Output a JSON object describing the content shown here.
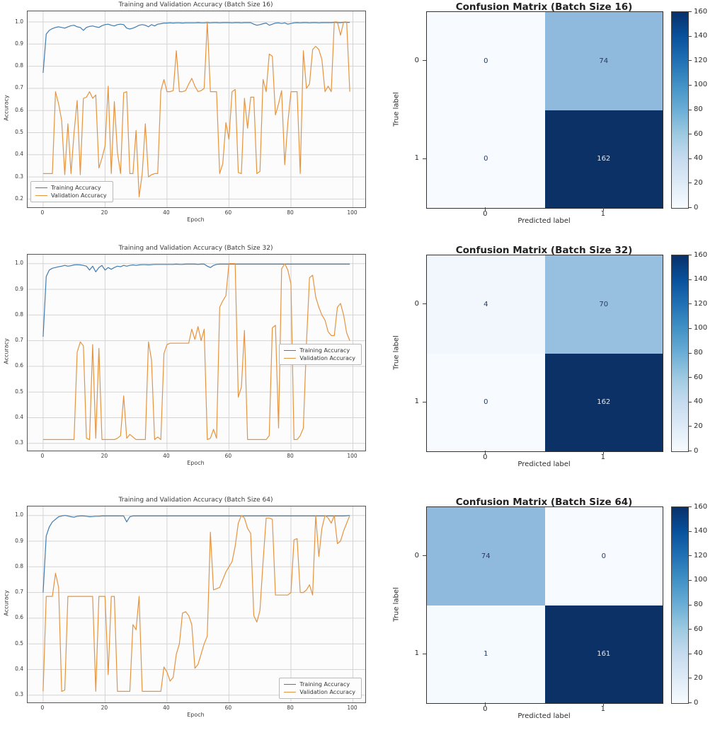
{
  "colors": {
    "training_line": "#417cb0",
    "validation_line": "#e59440",
    "grid_line": "#d4d4d4",
    "cm_dark_cell_text": "#dfe8f4",
    "cm_light_cell_text": "#263a5e"
  },
  "chart_data": [
    {
      "type": "line",
      "title": "Training and Validation Accuracy (Batch Size 16)",
      "xlabel": "Epoch",
      "ylabel": "Accuracy",
      "xticks": [
        0,
        20,
        40,
        60,
        80,
        100
      ],
      "yticks": [
        0.2,
        0.3,
        0.4,
        0.5,
        0.6,
        0.7,
        0.8,
        0.9,
        1.0
      ],
      "xlim": [
        -5,
        104
      ],
      "ylim": [
        0.163,
        1.048
      ],
      "grid": true,
      "legend_pos": "bottom-left",
      "series": [
        {
          "id": "training-accuracy-line",
          "name": "Training Accuracy",
          "color": "#417cb0",
          "values": [
            0.77,
            0.945,
            0.962,
            0.97,
            0.975,
            0.978,
            0.975,
            0.972,
            0.978,
            0.983,
            0.985,
            0.978,
            0.975,
            0.962,
            0.975,
            0.98,
            0.982,
            0.978,
            0.975,
            0.983,
            0.988,
            0.99,
            0.985,
            0.982,
            0.988,
            0.99,
            0.988,
            0.972,
            0.968,
            0.972,
            0.978,
            0.985,
            0.988,
            0.985,
            0.978,
            0.988,
            0.982,
            0.99,
            0.992,
            0.995,
            0.995,
            0.996,
            0.995,
            0.996,
            0.996,
            0.995,
            0.996,
            0.996,
            0.996,
            0.996,
            0.997,
            0.996,
            0.996,
            0.997,
            0.996,
            0.997,
            0.997,
            0.996,
            0.997,
            0.997,
            0.997,
            0.996,
            0.997,
            0.997,
            0.996,
            0.997,
            0.997,
            0.997,
            0.99,
            0.985,
            0.988,
            0.992,
            0.995,
            0.985,
            0.99,
            0.995,
            0.996,
            0.993,
            0.996,
            0.99,
            0.993,
            0.996,
            0.997,
            0.996,
            0.997,
            0.997,
            0.996,
            0.997,
            0.997,
            0.996,
            0.997,
            0.997,
            0.997,
            0.997,
            0.998,
            0.997,
            0.997,
            0.998,
            0.998,
            0.998
          ]
        },
        {
          "id": "validation-accuracy-line",
          "name": "Validation Accuracy",
          "color": "#e59440",
          "values": [
            0.315,
            0.315,
            0.315,
            0.315,
            0.685,
            0.63,
            0.555,
            0.31,
            0.54,
            0.315,
            0.5,
            0.645,
            0.31,
            0.655,
            0.66,
            0.685,
            0.655,
            0.67,
            0.34,
            0.385,
            0.44,
            0.71,
            0.315,
            0.64,
            0.41,
            0.315,
            0.68,
            0.685,
            0.315,
            0.315,
            0.51,
            0.21,
            0.315,
            0.54,
            0.3,
            0.31,
            0.315,
            0.315,
            0.69,
            0.74,
            0.685,
            0.685,
            0.69,
            0.87,
            0.685,
            0.685,
            0.69,
            0.72,
            0.745,
            0.71,
            0.685,
            0.69,
            0.7,
            1.0,
            0.685,
            0.685,
            0.685,
            0.315,
            0.36,
            0.545,
            0.47,
            0.685,
            0.695,
            0.32,
            0.315,
            0.655,
            0.52,
            0.66,
            0.66,
            0.315,
            0.325,
            0.74,
            0.685,
            0.855,
            0.845,
            0.58,
            0.63,
            0.69,
            0.355,
            0.545,
            0.685,
            0.685,
            0.685,
            0.315,
            0.87,
            0.7,
            0.72,
            0.875,
            0.89,
            0.875,
            0.83,
            0.685,
            0.71,
            0.685,
            1.0,
            1.0,
            0.94,
            1.0,
            1.0,
            0.685
          ]
        }
      ]
    },
    {
      "type": "heatmap",
      "title": "Confusion Matrix (Batch Size 16)",
      "xlabel": "Predicted label",
      "ylabel": "True label",
      "row_labels": [
        "0",
        "1"
      ],
      "col_labels": [
        "0",
        "1"
      ],
      "values": [
        [
          0,
          74
        ],
        [
          0,
          162
        ]
      ],
      "cell_colors": [
        [
          "#f7fbff",
          "#90badd"
        ],
        [
          "#f7fbff",
          "#0b3166"
        ]
      ],
      "colorbar": {
        "min": 0,
        "max": 160,
        "ticks": [
          0,
          20,
          40,
          60,
          80,
          100,
          120,
          140,
          160
        ],
        "gradient": [
          "#f7fbff",
          "#deebf7",
          "#c6dbef",
          "#9ecae1",
          "#6baed6",
          "#4292c6",
          "#2171b5",
          "#08519c",
          "#08306b"
        ]
      }
    },
    {
      "type": "line",
      "title": "Training and Validation Accuracy (Batch Size 32)",
      "xlabel": "Epoch",
      "ylabel": "Accuracy",
      "xticks": [
        0,
        20,
        40,
        60,
        80,
        100
      ],
      "yticks": [
        0.3,
        0.4,
        0.5,
        0.6,
        0.7,
        0.8,
        0.9,
        1.0
      ],
      "xlim": [
        -5,
        104
      ],
      "ylim": [
        0.272,
        1.035
      ],
      "grid": true,
      "legend_pos": "right-center",
      "series": [
        {
          "id": "training-accuracy-line",
          "name": "Training Accuracy",
          "color": "#417cb0",
          "values": [
            0.715,
            0.95,
            0.975,
            0.982,
            0.985,
            0.988,
            0.99,
            0.993,
            0.99,
            0.992,
            0.995,
            0.996,
            0.995,
            0.993,
            0.99,
            0.975,
            0.99,
            0.968,
            0.985,
            0.993,
            0.975,
            0.985,
            0.978,
            0.985,
            0.99,
            0.988,
            0.993,
            0.99,
            0.993,
            0.995,
            0.993,
            0.995,
            0.996,
            0.996,
            0.995,
            0.996,
            0.997,
            0.997,
            0.997,
            0.997,
            0.997,
            0.997,
            0.997,
            0.998,
            0.997,
            0.997,
            0.998,
            0.998,
            0.998,
            0.998,
            0.997,
            0.998,
            0.998,
            0.99,
            0.985,
            0.993,
            0.997,
            0.998,
            0.998,
            0.998,
            0.998,
            0.998,
            0.998,
            0.998,
            0.998,
            0.998,
            0.998,
            0.998,
            0.998,
            0.998,
            0.998,
            0.998,
            0.998,
            0.998,
            0.998,
            0.998,
            0.998,
            0.998,
            0.998,
            0.998,
            0.998,
            0.998,
            0.998,
            0.998,
            0.998,
            0.998,
            0.998,
            0.998,
            0.998,
            0.998,
            0.998,
            0.998,
            0.998,
            0.998,
            0.998,
            0.998,
            0.998,
            0.998,
            0.998,
            0.998
          ]
        },
        {
          "id": "validation-accuracy-line",
          "name": "Validation Accuracy",
          "color": "#e59440",
          "values": [
            0.315,
            0.315,
            0.315,
            0.315,
            0.315,
            0.315,
            0.315,
            0.315,
            0.315,
            0.315,
            0.315,
            0.655,
            0.695,
            0.68,
            0.32,
            0.315,
            0.685,
            0.32,
            0.67,
            0.315,
            0.315,
            0.315,
            0.315,
            0.315,
            0.32,
            0.33,
            0.485,
            0.32,
            0.335,
            0.325,
            0.315,
            0.315,
            0.315,
            0.315,
            0.695,
            0.625,
            0.315,
            0.325,
            0.315,
            0.65,
            0.685,
            0.69,
            0.69,
            0.69,
            0.69,
            0.69,
            0.69,
            0.69,
            0.745,
            0.705,
            0.755,
            0.7,
            0.745,
            0.315,
            0.32,
            0.355,
            0.32,
            0.83,
            0.855,
            0.875,
            1.0,
            1.0,
            1.0,
            0.48,
            0.52,
            0.74,
            0.315,
            0.315,
            0.315,
            0.315,
            0.315,
            0.315,
            0.315,
            0.33,
            0.75,
            0.76,
            0.36,
            0.98,
            1.0,
            0.975,
            0.92,
            0.315,
            0.315,
            0.33,
            0.36,
            0.69,
            0.945,
            0.955,
            0.87,
            0.83,
            0.8,
            0.78,
            0.735,
            0.72,
            0.72,
            0.83,
            0.845,
            0.8,
            0.73,
            0.7
          ]
        }
      ]
    },
    {
      "type": "heatmap",
      "title": "Confusion Matrix (Batch Size 32)",
      "xlabel": "Predicted label",
      "ylabel": "True label",
      "row_labels": [
        "0",
        "1"
      ],
      "col_labels": [
        "0",
        "1"
      ],
      "values": [
        [
          4,
          70
        ],
        [
          0,
          162
        ]
      ],
      "cell_colors": [
        [
          "#f1f7fd",
          "#97c0e0"
        ],
        [
          "#f7fbff",
          "#0b3166"
        ]
      ],
      "colorbar": {
        "min": 0,
        "max": 160,
        "ticks": [
          0,
          20,
          40,
          60,
          80,
          100,
          120,
          140,
          160
        ],
        "gradient": [
          "#f7fbff",
          "#deebf7",
          "#c6dbef",
          "#9ecae1",
          "#6baed6",
          "#4292c6",
          "#2171b5",
          "#08519c",
          "#08306b"
        ]
      }
    },
    {
      "type": "line",
      "title": "Training and Validation Accuracy (Batch Size 64)",
      "xlabel": "Epoch",
      "ylabel": "Accuracy",
      "xticks": [
        0,
        20,
        40,
        60,
        80,
        100
      ],
      "yticks": [
        0.3,
        0.4,
        0.5,
        0.6,
        0.7,
        0.8,
        0.9,
        1.0
      ],
      "xlim": [
        -5,
        104
      ],
      "ylim": [
        0.272,
        1.035
      ],
      "grid": true,
      "legend_pos": "bottom-right",
      "series": [
        {
          "id": "training-accuracy-line",
          "name": "Training Accuracy",
          "color": "#417cb0",
          "values": [
            0.7,
            0.92,
            0.955,
            0.975,
            0.985,
            0.995,
            0.998,
            1.0,
            0.998,
            0.995,
            0.993,
            0.997,
            0.998,
            0.998,
            0.997,
            0.995,
            0.996,
            0.997,
            0.997,
            0.998,
            0.998,
            0.998,
            0.998,
            0.998,
            0.998,
            0.998,
            0.998,
            0.975,
            0.995,
            0.998,
            0.998,
            0.998,
            0.998,
            0.998,
            0.998,
            0.998,
            0.998,
            0.998,
            0.998,
            0.998,
            0.998,
            0.998,
            0.998,
            0.998,
            0.998,
            0.998,
            0.998,
            0.998,
            0.998,
            0.998,
            0.998,
            0.998,
            0.998,
            0.998,
            0.998,
            0.998,
            0.998,
            0.998,
            0.998,
            0.998,
            0.998,
            0.998,
            0.998,
            0.998,
            0.998,
            0.998,
            0.998,
            0.998,
            0.998,
            0.998,
            0.998,
            0.998,
            0.998,
            0.998,
            0.998,
            0.998,
            0.998,
            0.998,
            0.998,
            0.998,
            0.998,
            0.998,
            0.998,
            0.998,
            0.998,
            0.998,
            0.998,
            0.998,
            0.998,
            0.998,
            0.998,
            0.998,
            0.998,
            0.998,
            0.998,
            0.998,
            0.998,
            0.998,
            0.999,
            1.0
          ]
        },
        {
          "id": "validation-accuracy-line",
          "name": "Validation Accuracy",
          "color": "#e59440",
          "values": [
            0.315,
            0.685,
            0.685,
            0.685,
            0.775,
            0.72,
            0.315,
            0.32,
            0.685,
            0.685,
            0.685,
            0.685,
            0.685,
            0.685,
            0.685,
            0.685,
            0.685,
            0.315,
            0.685,
            0.685,
            0.685,
            0.38,
            0.685,
            0.685,
            0.315,
            0.315,
            0.315,
            0.315,
            0.315,
            0.575,
            0.555,
            0.685,
            0.315,
            0.315,
            0.315,
            0.315,
            0.315,
            0.315,
            0.315,
            0.41,
            0.39,
            0.355,
            0.37,
            0.46,
            0.5,
            0.62,
            0.625,
            0.61,
            0.575,
            0.405,
            0.42,
            0.46,
            0.5,
            0.53,
            0.935,
            0.71,
            0.715,
            0.72,
            0.75,
            0.78,
            0.8,
            0.82,
            0.88,
            0.97,
            1.0,
            0.99,
            0.95,
            0.93,
            0.61,
            0.585,
            0.63,
            0.82,
            0.99,
            0.99,
            0.985,
            0.69,
            0.69,
            0.69,
            0.69,
            0.69,
            0.7,
            0.905,
            0.91,
            0.7,
            0.7,
            0.71,
            0.73,
            0.69,
            1.0,
            0.84,
            0.95,
            1.0,
            0.99,
            0.97,
            1.0,
            0.89,
            0.9,
            0.94,
            0.97,
            1.0
          ]
        }
      ]
    },
    {
      "type": "heatmap",
      "title": "Confusion Matrix (Batch Size 64)",
      "xlabel": "Predicted label",
      "ylabel": "True label",
      "row_labels": [
        "0",
        "1"
      ],
      "col_labels": [
        "0",
        "1"
      ],
      "values": [
        [
          74,
          0
        ],
        [
          1,
          161
        ]
      ],
      "cell_colors": [
        [
          "#90badd",
          "#f7fbff"
        ],
        [
          "#f5fafe",
          "#0b3166"
        ]
      ],
      "colorbar": {
        "min": 0,
        "max": 160,
        "ticks": [
          0,
          20,
          40,
          60,
          80,
          100,
          120,
          140,
          160
        ],
        "gradient": [
          "#f7fbff",
          "#deebf7",
          "#c6dbef",
          "#9ecae1",
          "#6baed6",
          "#4292c6",
          "#2171b5",
          "#08519c",
          "#08306b"
        ]
      }
    }
  ]
}
